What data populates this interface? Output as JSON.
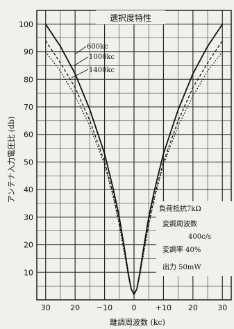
{
  "chart_data": {
    "type": "line",
    "title": "選択度特性",
    "xlabel": "離調周波数 (kc)",
    "ylabel": "アンテナ入力電圧比 (db)",
    "xlim": [
      -33,
      33
    ],
    "ylim": [
      0,
      105
    ],
    "x_tick_labels": [
      {
        "x": -30,
        "label": "30"
      },
      {
        "x": -20,
        "label": "20"
      },
      {
        "x": -10,
        "label": "−10"
      },
      {
        "x": 0,
        "label": "0"
      },
      {
        "x": 10,
        "label": "+10"
      },
      {
        "x": 20,
        "label": "20"
      },
      {
        "x": 30,
        "label": "30"
      }
    ],
    "y_ticks": [
      10,
      20,
      30,
      40,
      50,
      60,
      70,
      80,
      90,
      100
    ],
    "grid": true,
    "series": [
      {
        "name": "600kc",
        "x": [
          -30,
          -25,
          -20,
          -15,
          -10,
          -7,
          -5,
          -3,
          -2,
          -1,
          0,
          1,
          2,
          3,
          5,
          7,
          10,
          15,
          20,
          25,
          30
        ],
        "y": [
          100,
          92,
          82,
          69,
          53,
          40,
          30,
          17,
          10,
          4,
          2,
          4,
          10,
          17,
          30,
          40,
          53,
          69,
          82,
          92,
          100
        ]
      },
      {
        "name": "1000kc",
        "x": [
          -30,
          -25,
          -20,
          -15,
          -10,
          -7,
          -5,
          -3,
          -2,
          -1,
          0,
          1,
          2,
          3,
          5,
          7,
          10,
          15,
          20,
          25,
          30
        ],
        "y": [
          94,
          86,
          77,
          65,
          50,
          38,
          28,
          16,
          10,
          4,
          2,
          4,
          10,
          16,
          28,
          38,
          50,
          65,
          77,
          86,
          94
        ]
      },
      {
        "name": "1400kc",
        "x": [
          -30,
          -25,
          -20,
          -15,
          -10,
          -7,
          -5,
          -3,
          -2,
          -1,
          0,
          1,
          2,
          3,
          5,
          7,
          10,
          15,
          20,
          25,
          30
        ],
        "y": [
          90,
          83,
          74,
          63,
          49,
          37,
          27,
          15,
          9,
          4,
          2,
          4,
          9,
          15,
          27,
          37,
          49,
          63,
          74,
          83,
          90
        ]
      }
    ],
    "annotations": [
      "負荷抵抗7kΩ",
      "変調周波数",
      "400c/s",
      "変調率 40%",
      "出力 50mW"
    ]
  }
}
